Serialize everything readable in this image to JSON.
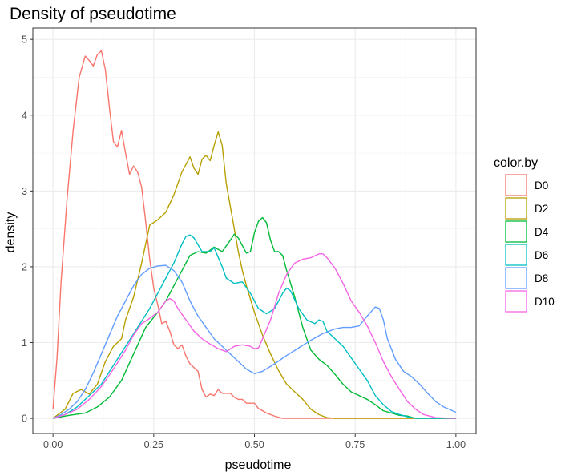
{
  "chart_data": {
    "type": "line",
    "title": "Density of pseudotime",
    "xlabel": "pseudotime",
    "ylabel": "density",
    "xlim": [
      -0.05,
      1.05
    ],
    "ylim": [
      -0.2,
      5.15
    ],
    "xticks": [
      0.0,
      0.25,
      0.5,
      0.75,
      1.0
    ],
    "xtick_labels": [
      "0.00",
      "0.25",
      "0.50",
      "0.75",
      "1.00"
    ],
    "yticks": [
      0,
      1,
      2,
      3,
      4,
      5
    ],
    "ytick_labels": [
      "0",
      "1",
      "2",
      "3",
      "4",
      "5"
    ],
    "grid": true,
    "legend": {
      "title": "color.by",
      "position": "right"
    },
    "series": [
      {
        "name": "D0",
        "color": "#F8766D",
        "points": [
          [
            0.0,
            0.12
          ],
          [
            0.01,
            0.8
          ],
          [
            0.02,
            1.8
          ],
          [
            0.035,
            2.9
          ],
          [
            0.05,
            3.8
          ],
          [
            0.065,
            4.5
          ],
          [
            0.08,
            4.78
          ],
          [
            0.09,
            4.72
          ],
          [
            0.1,
            4.65
          ],
          [
            0.11,
            4.8
          ],
          [
            0.12,
            4.85
          ],
          [
            0.13,
            4.6
          ],
          [
            0.14,
            4.1
          ],
          [
            0.15,
            3.65
          ],
          [
            0.16,
            3.58
          ],
          [
            0.17,
            3.8
          ],
          [
            0.18,
            3.5
          ],
          [
            0.19,
            3.22
          ],
          [
            0.2,
            3.33
          ],
          [
            0.21,
            3.25
          ],
          [
            0.22,
            3.05
          ],
          [
            0.23,
            2.6
          ],
          [
            0.24,
            2.1
          ],
          [
            0.25,
            1.72
          ],
          [
            0.26,
            1.5
          ],
          [
            0.27,
            1.25
          ],
          [
            0.28,
            1.28
          ],
          [
            0.29,
            1.15
          ],
          [
            0.3,
            0.97
          ],
          [
            0.31,
            0.92
          ],
          [
            0.32,
            0.97
          ],
          [
            0.33,
            0.82
          ],
          [
            0.34,
            0.72
          ],
          [
            0.35,
            0.67
          ],
          [
            0.36,
            0.62
          ],
          [
            0.37,
            0.38
          ],
          [
            0.38,
            0.28
          ],
          [
            0.39,
            0.32
          ],
          [
            0.4,
            0.3
          ],
          [
            0.41,
            0.38
          ],
          [
            0.42,
            0.33
          ],
          [
            0.44,
            0.33
          ],
          [
            0.45,
            0.28
          ],
          [
            0.46,
            0.25
          ],
          [
            0.47,
            0.25
          ],
          [
            0.48,
            0.2
          ],
          [
            0.5,
            0.2
          ],
          [
            0.51,
            0.13
          ],
          [
            0.53,
            0.07
          ],
          [
            0.55,
            0.03
          ],
          [
            0.57,
            0.0
          ],
          [
            1.0,
            0.0
          ]
        ]
      },
      {
        "name": "D2",
        "color": "#B79F00",
        "points": [
          [
            0.0,
            0.0
          ],
          [
            0.03,
            0.12
          ],
          [
            0.05,
            0.33
          ],
          [
            0.07,
            0.38
          ],
          [
            0.09,
            0.32
          ],
          [
            0.11,
            0.45
          ],
          [
            0.13,
            0.75
          ],
          [
            0.15,
            0.95
          ],
          [
            0.17,
            1.05
          ],
          [
            0.18,
            1.3
          ],
          [
            0.2,
            1.6
          ],
          [
            0.22,
            2.05
          ],
          [
            0.24,
            2.55
          ],
          [
            0.26,
            2.62
          ],
          [
            0.28,
            2.72
          ],
          [
            0.3,
            2.95
          ],
          [
            0.32,
            3.25
          ],
          [
            0.34,
            3.45
          ],
          [
            0.35,
            3.3
          ],
          [
            0.36,
            3.22
          ],
          [
            0.37,
            3.42
          ],
          [
            0.38,
            3.47
          ],
          [
            0.39,
            3.4
          ],
          [
            0.4,
            3.6
          ],
          [
            0.41,
            3.78
          ],
          [
            0.42,
            3.6
          ],
          [
            0.43,
            3.1
          ],
          [
            0.44,
            2.8
          ],
          [
            0.45,
            2.5
          ],
          [
            0.46,
            2.2
          ],
          [
            0.47,
            1.95
          ],
          [
            0.48,
            1.75
          ],
          [
            0.5,
            1.4
          ],
          [
            0.52,
            1.1
          ],
          [
            0.54,
            0.85
          ],
          [
            0.56,
            0.63
          ],
          [
            0.58,
            0.45
          ],
          [
            0.6,
            0.35
          ],
          [
            0.62,
            0.25
          ],
          [
            0.64,
            0.12
          ],
          [
            0.66,
            0.05
          ],
          [
            0.68,
            0.01
          ],
          [
            0.7,
            0.0
          ],
          [
            1.0,
            0.0
          ]
        ]
      },
      {
        "name": "D4",
        "color": "#00BA38",
        "points": [
          [
            0.0,
            0.0
          ],
          [
            0.04,
            0.04
          ],
          [
            0.08,
            0.07
          ],
          [
            0.11,
            0.15
          ],
          [
            0.14,
            0.28
          ],
          [
            0.17,
            0.5
          ],
          [
            0.2,
            0.85
          ],
          [
            0.23,
            1.2
          ],
          [
            0.26,
            1.4
          ],
          [
            0.28,
            1.55
          ],
          [
            0.3,
            1.75
          ],
          [
            0.32,
            1.95
          ],
          [
            0.34,
            2.15
          ],
          [
            0.36,
            2.2
          ],
          [
            0.38,
            2.18
          ],
          [
            0.4,
            2.26
          ],
          [
            0.42,
            2.2
          ],
          [
            0.44,
            2.35
          ],
          [
            0.45,
            2.43
          ],
          [
            0.46,
            2.38
          ],
          [
            0.48,
            2.18
          ],
          [
            0.49,
            2.2
          ],
          [
            0.5,
            2.45
          ],
          [
            0.51,
            2.6
          ],
          [
            0.52,
            2.65
          ],
          [
            0.53,
            2.58
          ],
          [
            0.54,
            2.35
          ],
          [
            0.55,
            2.2
          ],
          [
            0.56,
            2.2
          ],
          [
            0.57,
            2.15
          ],
          [
            0.58,
            1.95
          ],
          [
            0.6,
            1.6
          ],
          [
            0.62,
            1.2
          ],
          [
            0.64,
            0.9
          ],
          [
            0.66,
            0.78
          ],
          [
            0.68,
            0.7
          ],
          [
            0.7,
            0.58
          ],
          [
            0.72,
            0.45
          ],
          [
            0.74,
            0.35
          ],
          [
            0.76,
            0.3
          ],
          [
            0.78,
            0.25
          ],
          [
            0.8,
            0.18
          ],
          [
            0.82,
            0.1
          ],
          [
            0.84,
            0.07
          ],
          [
            0.86,
            0.04
          ],
          [
            0.88,
            0.03
          ],
          [
            0.9,
            0.0
          ],
          [
            1.0,
            0.0
          ]
        ]
      },
      {
        "name": "D6",
        "color": "#00BFC4",
        "points": [
          [
            0.0,
            0.0
          ],
          [
            0.03,
            0.05
          ],
          [
            0.06,
            0.15
          ],
          [
            0.09,
            0.3
          ],
          [
            0.12,
            0.45
          ],
          [
            0.15,
            0.7
          ],
          [
            0.18,
            0.95
          ],
          [
            0.21,
            1.2
          ],
          [
            0.24,
            1.45
          ],
          [
            0.26,
            1.65
          ],
          [
            0.28,
            1.85
          ],
          [
            0.3,
            2.05
          ],
          [
            0.32,
            2.3
          ],
          [
            0.33,
            2.4
          ],
          [
            0.34,
            2.42
          ],
          [
            0.35,
            2.38
          ],
          [
            0.37,
            2.2
          ],
          [
            0.39,
            2.2
          ],
          [
            0.4,
            2.25
          ],
          [
            0.42,
            2.0
          ],
          [
            0.43,
            1.85
          ],
          [
            0.45,
            1.78
          ],
          [
            0.47,
            1.8
          ],
          [
            0.49,
            1.65
          ],
          [
            0.51,
            1.45
          ],
          [
            0.53,
            1.38
          ],
          [
            0.55,
            1.45
          ],
          [
            0.57,
            1.65
          ],
          [
            0.58,
            1.72
          ],
          [
            0.59,
            1.68
          ],
          [
            0.61,
            1.45
          ],
          [
            0.63,
            1.3
          ],
          [
            0.65,
            1.25
          ],
          [
            0.66,
            1.3
          ],
          [
            0.67,
            1.28
          ],
          [
            0.68,
            1.15
          ],
          [
            0.7,
            1.05
          ],
          [
            0.72,
            0.95
          ],
          [
            0.74,
            0.8
          ],
          [
            0.76,
            0.65
          ],
          [
            0.78,
            0.5
          ],
          [
            0.8,
            0.3
          ],
          [
            0.82,
            0.18
          ],
          [
            0.84,
            0.09
          ],
          [
            0.86,
            0.05
          ],
          [
            0.88,
            0.02
          ],
          [
            0.9,
            0.0
          ],
          [
            1.0,
            0.0
          ]
        ]
      },
      {
        "name": "D8",
        "color": "#619CFF",
        "points": [
          [
            0.0,
            0.0
          ],
          [
            0.02,
            0.05
          ],
          [
            0.04,
            0.12
          ],
          [
            0.06,
            0.22
          ],
          [
            0.08,
            0.38
          ],
          [
            0.1,
            0.6
          ],
          [
            0.12,
            0.85
          ],
          [
            0.14,
            1.1
          ],
          [
            0.16,
            1.35
          ],
          [
            0.18,
            1.55
          ],
          [
            0.2,
            1.75
          ],
          [
            0.22,
            1.9
          ],
          [
            0.24,
            1.98
          ],
          [
            0.26,
            2.01
          ],
          [
            0.28,
            2.02
          ],
          [
            0.3,
            1.95
          ],
          [
            0.32,
            1.8
          ],
          [
            0.34,
            1.55
          ],
          [
            0.36,
            1.35
          ],
          [
            0.38,
            1.2
          ],
          [
            0.4,
            1.05
          ],
          [
            0.42,
            0.95
          ],
          [
            0.44,
            0.85
          ],
          [
            0.46,
            0.75
          ],
          [
            0.48,
            0.65
          ],
          [
            0.5,
            0.59
          ],
          [
            0.52,
            0.62
          ],
          [
            0.55,
            0.72
          ],
          [
            0.58,
            0.83
          ],
          [
            0.61,
            0.93
          ],
          [
            0.64,
            1.03
          ],
          [
            0.67,
            1.12
          ],
          [
            0.7,
            1.18
          ],
          [
            0.72,
            1.2
          ],
          [
            0.74,
            1.2
          ],
          [
            0.76,
            1.22
          ],
          [
            0.78,
            1.35
          ],
          [
            0.8,
            1.47
          ],
          [
            0.81,
            1.45
          ],
          [
            0.82,
            1.3
          ],
          [
            0.83,
            1.05
          ],
          [
            0.85,
            0.78
          ],
          [
            0.87,
            0.62
          ],
          [
            0.89,
            0.55
          ],
          [
            0.91,
            0.45
          ],
          [
            0.93,
            0.33
          ],
          [
            0.95,
            0.22
          ],
          [
            0.97,
            0.15
          ],
          [
            1.0,
            0.08
          ]
        ]
      },
      {
        "name": "D10",
        "color": "#F564E3",
        "points": [
          [
            0.0,
            0.0
          ],
          [
            0.03,
            0.05
          ],
          [
            0.06,
            0.12
          ],
          [
            0.09,
            0.25
          ],
          [
            0.12,
            0.42
          ],
          [
            0.15,
            0.65
          ],
          [
            0.18,
            0.9
          ],
          [
            0.2,
            1.1
          ],
          [
            0.22,
            1.25
          ],
          [
            0.24,
            1.32
          ],
          [
            0.26,
            1.4
          ],
          [
            0.28,
            1.55
          ],
          [
            0.29,
            1.58
          ],
          [
            0.3,
            1.55
          ],
          [
            0.31,
            1.45
          ],
          [
            0.33,
            1.3
          ],
          [
            0.35,
            1.15
          ],
          [
            0.37,
            1.05
          ],
          [
            0.39,
            0.98
          ],
          [
            0.41,
            0.92
          ],
          [
            0.43,
            0.88
          ],
          [
            0.45,
            0.95
          ],
          [
            0.47,
            0.97
          ],
          [
            0.49,
            0.95
          ],
          [
            0.5,
            0.92
          ],
          [
            0.51,
            0.93
          ],
          [
            0.52,
            1.05
          ],
          [
            0.54,
            1.3
          ],
          [
            0.56,
            1.65
          ],
          [
            0.58,
            1.9
          ],
          [
            0.6,
            2.05
          ],
          [
            0.62,
            2.1
          ],
          [
            0.64,
            2.12
          ],
          [
            0.66,
            2.17
          ],
          [
            0.67,
            2.17
          ],
          [
            0.68,
            2.12
          ],
          [
            0.7,
            1.98
          ],
          [
            0.72,
            1.78
          ],
          [
            0.74,
            1.55
          ],
          [
            0.76,
            1.4
          ],
          [
            0.78,
            1.22
          ],
          [
            0.8,
            1.0
          ],
          [
            0.82,
            0.75
          ],
          [
            0.84,
            0.55
          ],
          [
            0.86,
            0.38
          ],
          [
            0.88,
            0.22
          ],
          [
            0.9,
            0.12
          ],
          [
            0.92,
            0.05
          ],
          [
            0.95,
            0.01
          ],
          [
            1.0,
            0.0
          ]
        ]
      }
    ]
  }
}
